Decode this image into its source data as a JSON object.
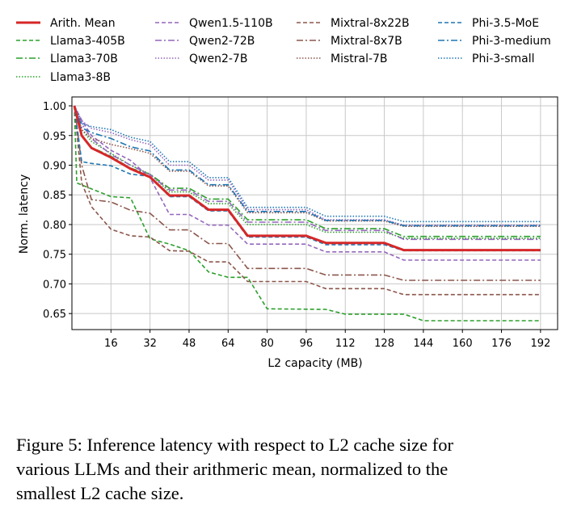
{
  "chart_data": {
    "type": "line",
    "xlabel": "L2 capacity (MB)",
    "ylabel": "Norm. latency",
    "xlim": [
      0,
      199
    ],
    "ylim": [
      0.623,
      1.015
    ],
    "xticks": [
      16,
      32,
      48,
      64,
      80,
      96,
      112,
      128,
      144,
      160,
      176,
      192
    ],
    "yticks": [
      "1.00",
      "0.95",
      "0.90",
      "0.85",
      "0.80",
      "0.75",
      "0.70",
      "0.65"
    ],
    "grid": true,
    "legend_position": "top",
    "x": [
      1,
      4,
      8,
      16,
      24,
      32,
      40,
      48,
      56,
      64,
      72,
      96,
      104,
      128,
      136,
      192
    ],
    "series": [
      {
        "name": "Arith. Mean",
        "color": "#d62728",
        "style": "solid",
        "values": [
          1.0,
          0.95,
          0.929,
          0.913,
          0.894,
          0.88,
          0.849,
          0.849,
          0.825,
          0.825,
          0.781,
          0.781,
          0.769,
          0.769,
          0.757,
          0.757
        ]
      },
      {
        "name": "Llama3-405B",
        "color": "#2ca02c",
        "style": "dashed",
        "x": [
          1,
          2,
          16,
          24,
          32,
          40,
          48,
          56,
          64,
          72,
          80,
          104,
          112,
          136,
          144,
          192
        ],
        "values": [
          1.0,
          0.87,
          0.847,
          0.845,
          0.776,
          0.767,
          0.756,
          0.72,
          0.711,
          0.711,
          0.658,
          0.657,
          0.649,
          0.649,
          0.638,
          0.638
        ]
      },
      {
        "name": "Llama3-70B",
        "color": "#2ca02c",
        "style": "dashdot",
        "values": [
          1.0,
          0.95,
          0.93,
          0.915,
          0.895,
          0.885,
          0.861,
          0.861,
          0.843,
          0.843,
          0.808,
          0.808,
          0.793,
          0.793,
          0.78,
          0.78
        ]
      },
      {
        "name": "Llama3-8B",
        "color": "#2ca02c",
        "style": "dotted",
        "values": [
          1.0,
          0.96,
          0.94,
          0.92,
          0.9,
          0.885,
          0.855,
          0.855,
          0.835,
          0.835,
          0.8,
          0.8,
          0.787,
          0.787,
          0.777,
          0.777
        ]
      },
      {
        "name": "Qwen1.5-110B",
        "color": "#9467bd",
        "style": "dashed",
        "values": [
          1.0,
          0.976,
          0.95,
          0.925,
          0.908,
          0.879,
          0.817,
          0.817,
          0.799,
          0.799,
          0.767,
          0.767,
          0.754,
          0.754,
          0.74,
          0.74
        ]
      },
      {
        "name": "Qwen2-72B",
        "color": "#9467bd",
        "style": "dashdot",
        "values": [
          1.0,
          0.97,
          0.945,
          0.918,
          0.9,
          0.884,
          0.858,
          0.858,
          0.839,
          0.839,
          0.804,
          0.804,
          0.79,
          0.79,
          0.775,
          0.775
        ]
      },
      {
        "name": "Qwen2-7B",
        "color": "#9467bd",
        "style": "dotted",
        "values": [
          1.0,
          0.975,
          0.962,
          0.955,
          0.943,
          0.935,
          0.9,
          0.9,
          0.875,
          0.875,
          0.825,
          0.825,
          0.808,
          0.808,
          0.799,
          0.799
        ]
      },
      {
        "name": "Mixtral-8x22B",
        "color": "#8c564b",
        "style": "dashed",
        "values": [
          1.0,
          0.87,
          0.83,
          0.792,
          0.781,
          0.779,
          0.756,
          0.755,
          0.737,
          0.737,
          0.704,
          0.704,
          0.692,
          0.692,
          0.682,
          0.682
        ]
      },
      {
        "name": "Mixtral-8x7B",
        "color": "#8c564b",
        "style": "dashdot",
        "values": [
          1.0,
          0.9,
          0.842,
          0.838,
          0.824,
          0.819,
          0.791,
          0.791,
          0.768,
          0.768,
          0.726,
          0.726,
          0.715,
          0.715,
          0.706,
          0.706
        ]
      },
      {
        "name": "Mistral-7B",
        "color": "#8c564b",
        "style": "dotted",
        "values": [
          1.0,
          0.96,
          0.945,
          0.935,
          0.928,
          0.92,
          0.89,
          0.89,
          0.865,
          0.865,
          0.82,
          0.82,
          0.806,
          0.806,
          0.797,
          0.797
        ]
      },
      {
        "name": "Phi-3.5-MoE",
        "color": "#1f77b4",
        "style": "dashed",
        "values": [
          1.0,
          0.906,
          0.903,
          0.899,
          0.885,
          0.881,
          0.847,
          0.847,
          0.823,
          0.823,
          0.779,
          0.779,
          0.766,
          0.766,
          0.756,
          0.756
        ]
      },
      {
        "name": "Phi-3-medium",
        "color": "#1f77b4",
        "style": "dashdot",
        "values": [
          1.0,
          0.963,
          0.955,
          0.945,
          0.931,
          0.924,
          0.892,
          0.892,
          0.867,
          0.867,
          0.822,
          0.822,
          0.807,
          0.807,
          0.798,
          0.798
        ]
      },
      {
        "name": "Phi-3-small",
        "color": "#1f77b4",
        "style": "dotted",
        "values": [
          1.0,
          0.97,
          0.965,
          0.96,
          0.947,
          0.94,
          0.906,
          0.906,
          0.879,
          0.879,
          0.829,
          0.829,
          0.814,
          0.814,
          0.805,
          0.805
        ]
      }
    ]
  },
  "caption": {
    "lines": [
      "Figure 5: Inference latency with respect to L2 cache size for",
      "various LLMs and their arithmeric mean, normalized to the",
      "smallest L2 cache size."
    ]
  }
}
